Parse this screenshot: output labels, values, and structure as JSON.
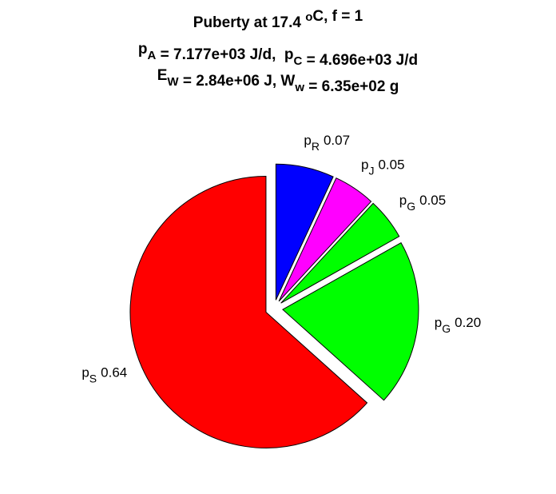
{
  "chart_data": {
    "type": "pie",
    "title": [
      [
        "Puberty at 17.4 ",
        {
          "sup": "o"
        },
        "C, f = 1"
      ],
      [
        "p",
        {
          "sub": "A"
        },
        " = 7.177e+03 J/d,  p",
        {
          "sub": "C"
        },
        " = 4.696e+03 J/d"
      ],
      [
        "E",
        {
          "sub": "W"
        },
        " = 2.84e+06 J, W",
        {
          "sub": "w"
        },
        " = 6.35e+02 g"
      ]
    ],
    "categories": [
      {
        "symbol": "p",
        "sub": "R"
      },
      {
        "symbol": "p",
        "sub": "J"
      },
      {
        "symbol": "p",
        "sub": "G"
      },
      {
        "symbol": "p",
        "sub": "G"
      },
      {
        "symbol": "p",
        "sub": "S"
      }
    ],
    "values": [
      0.07,
      0.05,
      0.05,
      0.2,
      0.64
    ],
    "value_labels": [
      "0.07",
      "0.05",
      "0.05",
      "0.20",
      "0.64"
    ],
    "colors": [
      "#0000ff",
      "#ff00ff",
      "#00ff00",
      "#00ff00",
      "#ff0000"
    ],
    "exploded": true
  }
}
